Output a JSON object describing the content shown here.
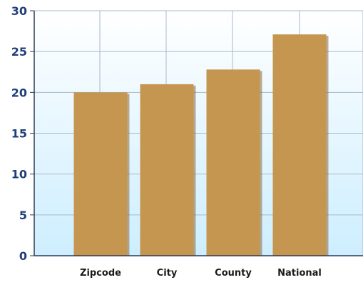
{
  "chart_data": {
    "type": "bar",
    "title": "",
    "xlabel": "",
    "ylabel": "",
    "categories": [
      "Zipcode",
      "City",
      "County",
      "National"
    ],
    "values": [
      20.0,
      21.0,
      22.8,
      27.1
    ],
    "ylim": [
      0,
      30
    ],
    "yticks": [
      "0",
      "5",
      "10",
      "15",
      "20",
      "25",
      "30"
    ],
    "grid": true,
    "legend": "none",
    "colors": {
      "bar": "#c4964f",
      "bar_shadow": "#8a6a3e",
      "plot_bg_top": "#ffffff",
      "plot_bg_bottom": "#cdeeff",
      "gridline": "#a9b9c8",
      "axis": "#2b3a55"
    }
  }
}
